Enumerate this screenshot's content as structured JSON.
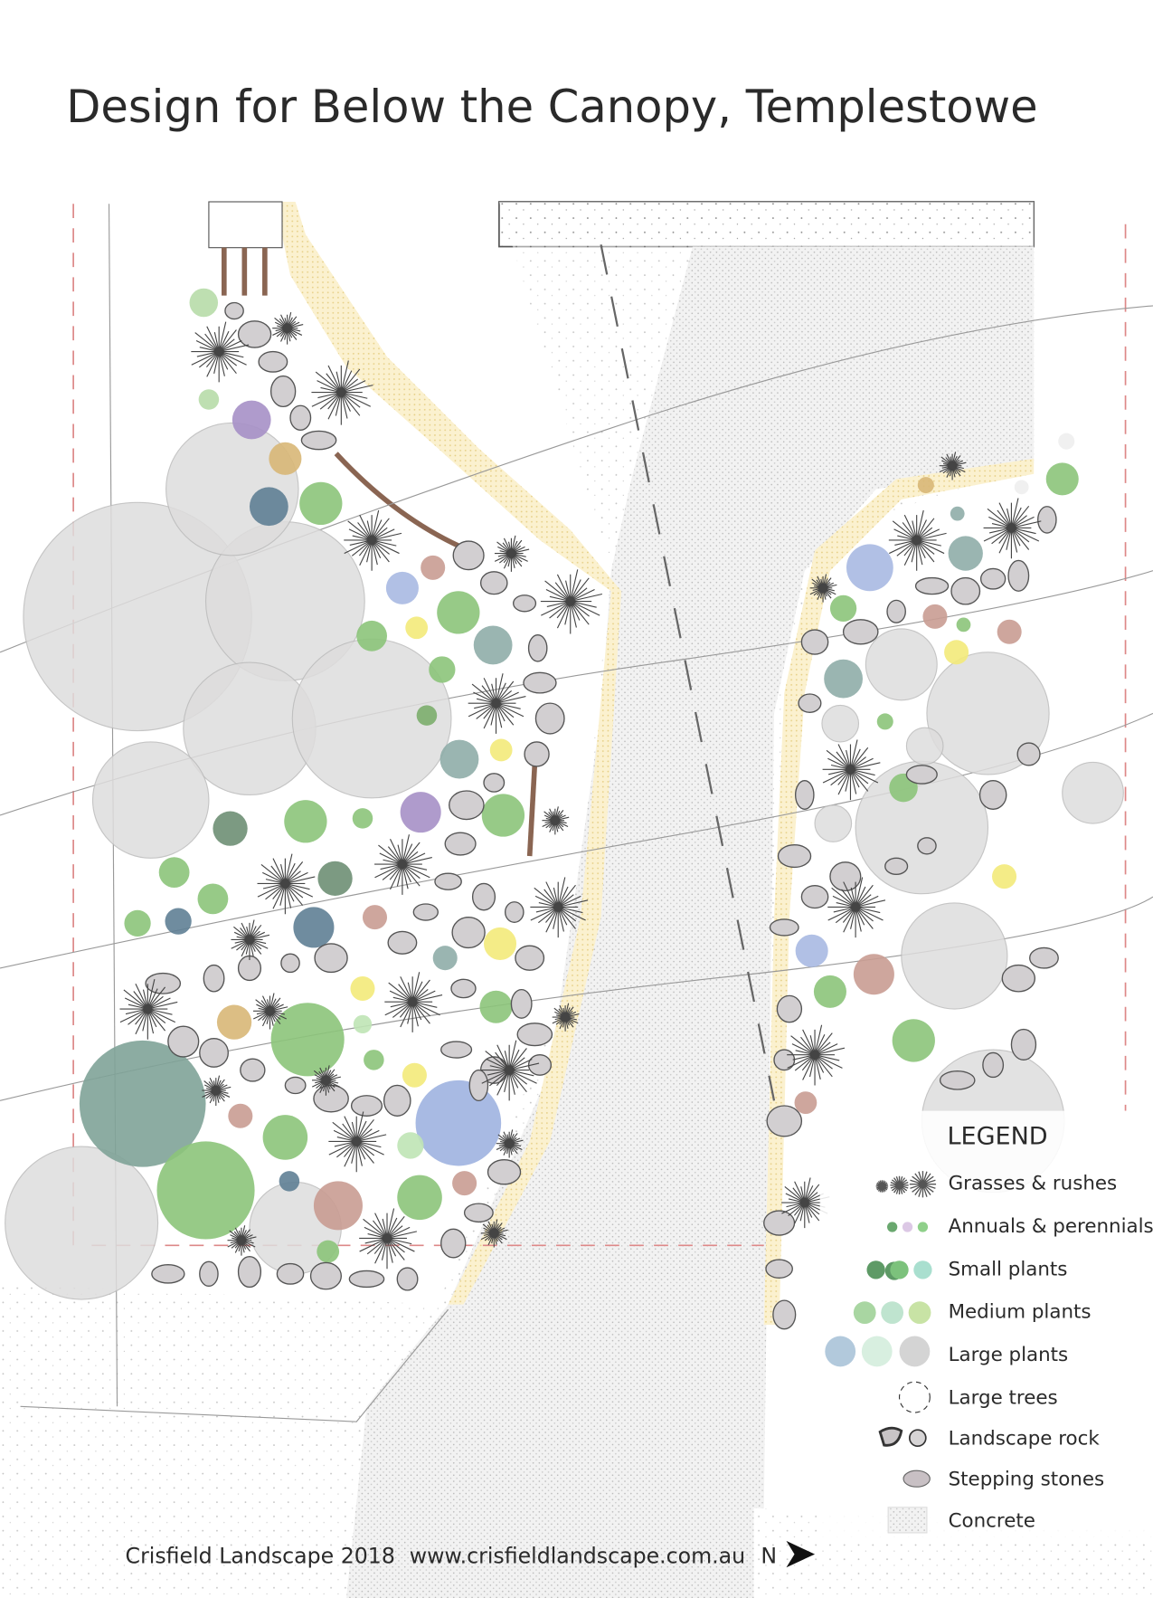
{
  "title": "Design for Below the Canopy, Templestowe",
  "legend": {
    "title": "LEGEND",
    "items": [
      "Grasses & rushes",
      "Annuals & perennials",
      "Small plants",
      "Medium plants",
      "Large plants",
      "Large trees",
      "Landscape rock",
      "Stepping stones",
      "Concrete"
    ]
  },
  "footer": {
    "credit": "Crisfield Landscape 2018",
    "website": "www.crisfieldlandscape.com.au",
    "north": "N"
  }
}
